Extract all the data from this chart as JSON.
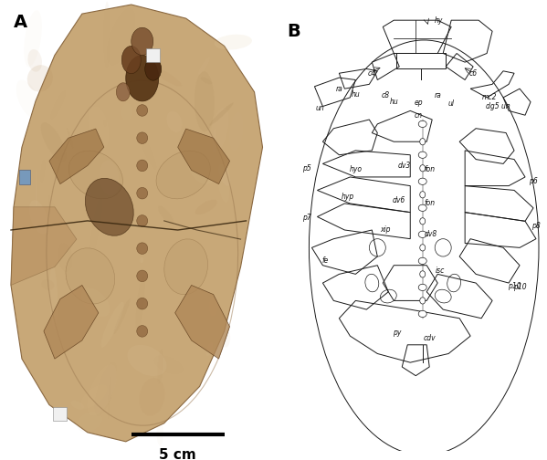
{
  "panel_A_label": "A",
  "panel_B_label": "B",
  "scale_bar_label": "5 cm",
  "bg_color": "#ffffff",
  "label_fontsize": 14,
  "scale_fontsize": 11,
  "stone_base_color": "#c8a878",
  "stone_edge_color": "#9a7a50",
  "fossil_dark": "#7a5530",
  "fossil_mid": "#a07848",
  "line_color": "#1a1a1a",
  "line_width": 0.7,
  "ann_fontsize": 5.5
}
